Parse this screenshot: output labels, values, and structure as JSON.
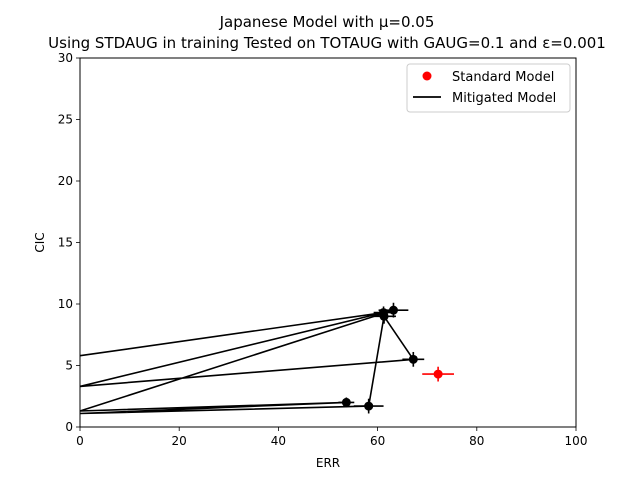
{
  "chart_data": {
    "type": "scatter",
    "title_line1": "Japanese Model with μ=0.05",
    "title_line2": "Using STDAUG in training Tested on TOTAUG with GAUG=0.1 and ε=0.001",
    "xlabel": "ERR",
    "ylabel": "CIC",
    "xlim": [
      0,
      100
    ],
    "ylim": [
      0,
      30
    ],
    "xticks": [
      "0",
      "20",
      "40",
      "60",
      "80",
      "100"
    ],
    "yticks": [
      "0",
      "5",
      "10",
      "15",
      "20",
      "25",
      "30"
    ],
    "grid": false,
    "legend_placement": "top-right",
    "series": [
      {
        "name": "Standard Model",
        "color": "#ff0000",
        "marker": "circle",
        "points": [
          {
            "x": 72.2,
            "y": 4.3,
            "xerr": 3.2,
            "yerr": 0.6
          }
        ]
      },
      {
        "name": "Mitigated Model",
        "color": "#000000",
        "marker": "circle",
        "connected": true,
        "points": [
          {
            "x": 0,
            "y": 5.8,
            "xerr": 0,
            "yerr": 0
          },
          {
            "x": 61.2,
            "y": 9.3,
            "xerr": 2.0,
            "yerr": 0.5
          },
          {
            "x": 0,
            "y": 3.3,
            "xerr": 0,
            "yerr": 0
          },
          {
            "x": 67.2,
            "y": 5.5,
            "xerr": 2.2,
            "yerr": 0.6
          },
          {
            "x": 61.3,
            "y": 9.0,
            "xerr": 2.4,
            "yerr": 0.6
          },
          {
            "x": 58.2,
            "y": 1.7,
            "xerr": 3.0,
            "yerr": 0.6
          },
          {
            "x": 0,
            "y": 1.1,
            "xerr": 0,
            "yerr": 0
          },
          {
            "x": 53.7,
            "y": 2.0,
            "xerr": 1.6,
            "yerr": 0.4
          },
          {
            "x": 0,
            "y": 1.3,
            "xerr": 0,
            "yerr": 0
          },
          {
            "x": 63.2,
            "y": 9.5,
            "xerr": 3.0,
            "yerr": 0.6
          }
        ]
      }
    ]
  }
}
